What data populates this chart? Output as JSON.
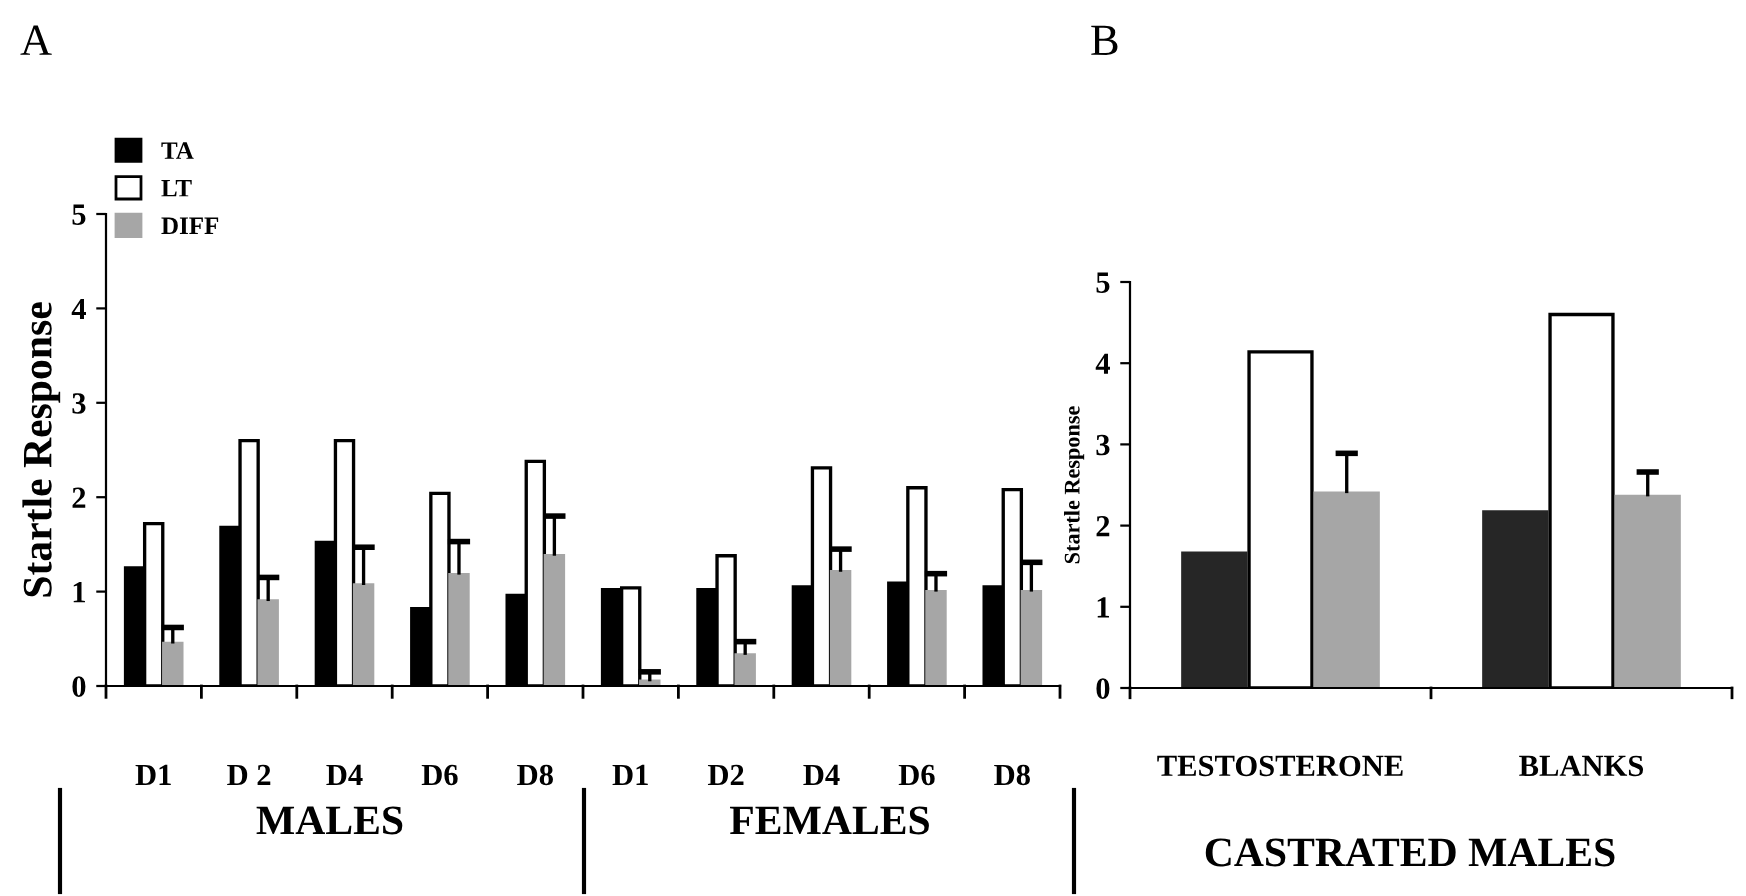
{
  "chart_data": [
    {
      "type": "bar",
      "title": "A",
      "ylabel": "Startle Response",
      "categories": [
        "D1",
        "D 2",
        "D4",
        "D6",
        "D8",
        "D1",
        "D2",
        "D4",
        "D6",
        "D8"
      ],
      "series": [
        {
          "name": "TA",
          "color": "#000000",
          "values": [
            1.25,
            1.68,
            1.52,
            0.82,
            0.96,
            1.02,
            1.02,
            1.05,
            1.09,
            1.05
          ]
        },
        {
          "name": "LT",
          "color": "#ffffff",
          "values": [
            1.72,
            2.6,
            2.6,
            2.04,
            2.38,
            1.04,
            1.38,
            2.31,
            2.1,
            2.08
          ]
        },
        {
          "name": "DIFF",
          "color": "#a6a6a6",
          "values": [
            0.45,
            0.9,
            1.07,
            1.18,
            1.38,
            0.05,
            0.33,
            1.21,
            1.0,
            1.0
          ],
          "errors": [
            [
              0.45,
              0.62
            ],
            [
              0.9,
              1.15
            ],
            [
              1.07,
              1.47
            ],
            [
              1.18,
              1.53
            ],
            [
              1.38,
              1.8
            ],
            [
              0.05,
              0.15
            ],
            [
              0.33,
              0.47
            ],
            [
              1.21,
              1.45
            ],
            [
              1.0,
              1.19
            ],
            [
              1.0,
              1.31
            ]
          ]
        }
      ],
      "ylim": [
        0,
        5
      ],
      "yticks": [
        0,
        1,
        2,
        3,
        4,
        5
      ],
      "legend": "top left",
      "grid": false,
      "annotations": [
        "MALES",
        "FEMALES"
      ]
    },
    {
      "type": "bar",
      "title": "B",
      "ylabel": "Startle Response",
      "categories": [
        "TESTOSTERONE",
        "BLANKS"
      ],
      "series": [
        {
          "color": "#262626",
          "values": [
            1.66,
            2.17
          ]
        },
        {
          "color": "#ffffff",
          "values": [
            4.14,
            4.6
          ]
        },
        {
          "color": "#a6a6a6",
          "values": [
            2.4,
            2.36
          ],
          "errors": [
            [
              2.4,
              2.89
            ],
            [
              2.36,
              2.66
            ]
          ]
        }
      ],
      "ylim": [
        0,
        5
      ],
      "yticks": [
        0,
        1,
        2,
        3,
        4,
        5
      ],
      "legend": false,
      "grid": false,
      "annotations": [
        "CASTRATED MALES"
      ]
    }
  ]
}
